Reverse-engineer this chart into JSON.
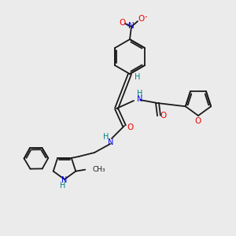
{
  "bg_color": "#ebebeb",
  "bond_color": "#1a1a1a",
  "N_color": "#0000ee",
  "O_color": "#ee0000",
  "NH_color": "#008080",
  "fig_w": 3.0,
  "fig_h": 3.0,
  "dpi": 100,
  "xlim": [
    0,
    300
  ],
  "ylim": [
    0,
    300
  ]
}
